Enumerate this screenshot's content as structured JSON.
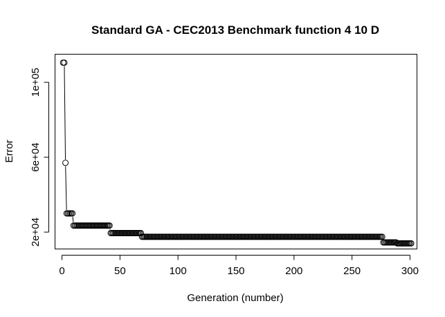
{
  "chart_data": {
    "type": "scatter",
    "title": "Standard GA - CEC2013 Benchmark function  4 10 D",
    "xlabel": "Generation (number)",
    "ylabel": "Error",
    "xlim": [
      -6,
      306
    ],
    "ylim": [
      11000,
      115000
    ],
    "x_ticks": [
      0,
      50,
      100,
      150,
      200,
      250,
      300
    ],
    "x_tick_labels": [
      "0",
      "50",
      "100",
      "150",
      "200",
      "250",
      "300"
    ],
    "y_ticks": [
      20000,
      60000,
      100000
    ],
    "y_tick_labels": [
      "2e+04",
      "6e+04",
      "1e+05"
    ],
    "grid": false,
    "legend": "none",
    "marker": "open-circle",
    "connected": true,
    "series": [
      {
        "segments": [
          {
            "x_start": 1,
            "x_end": 2,
            "value": 110500
          },
          {
            "x_start": 3,
            "x_end": 3,
            "value": 57000
          },
          {
            "x_start": 4,
            "x_end": 9,
            "value": 30000
          },
          {
            "x_start": 10,
            "x_end": 41,
            "value": 23500
          },
          {
            "x_start": 42,
            "x_end": 68,
            "value": 19500
          },
          {
            "x_start": 69,
            "x_end": 276,
            "value": 17500
          },
          {
            "x_start": 277,
            "x_end": 288,
            "value": 14500
          },
          {
            "x_start": 289,
            "x_end": 301,
            "value": 14000
          }
        ]
      }
    ],
    "colors": {
      "points": "#000000",
      "background": "#ffffff"
    }
  }
}
